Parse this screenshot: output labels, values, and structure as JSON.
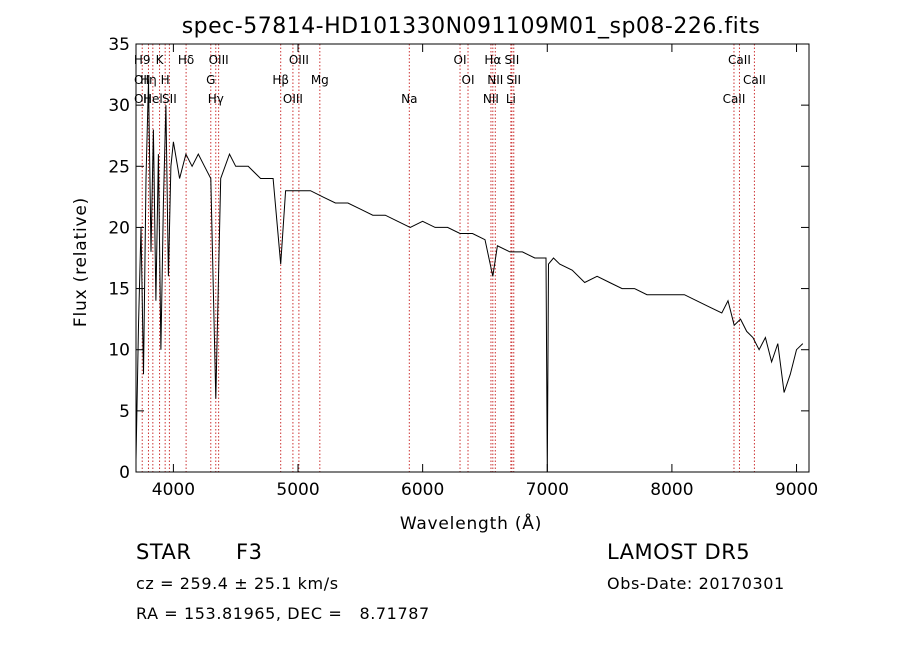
{
  "chart_data": {
    "type": "line",
    "title": "spec-57814-HD101330N091109M01_sp08-226.fits",
    "xlabel": "Wavelength (Å)",
    "ylabel": "Flux (relative)",
    "xlim": [
      3700,
      9100
    ],
    "ylim": [
      0,
      35
    ],
    "xticks": [
      4000,
      5000,
      6000,
      7000,
      8000,
      9000
    ],
    "yticks": [
      0,
      5,
      10,
      15,
      20,
      25,
      30,
      35
    ],
    "grid": false,
    "line_color": "#000000",
    "marker_color": "#cc3333",
    "series": [
      {
        "x": [
          3700,
          3720,
          3740,
          3760,
          3780,
          3800,
          3820,
          3840,
          3860,
          3880,
          3900,
          3920,
          3940,
          3960,
          3980,
          4000,
          4050,
          4100,
          4150,
          4200,
          4250,
          4300,
          4340,
          4380,
          4450,
          4500,
          4600,
          4700,
          4800,
          4861,
          4900,
          5000,
          5100,
          5200,
          5300,
          5400,
          5500,
          5600,
          5700,
          5800,
          5900,
          6000,
          6100,
          6200,
          6300,
          6400,
          6500,
          6563,
          6600,
          6700,
          6800,
          6900,
          6950,
          6990,
          7000,
          7010,
          7050,
          7100,
          7200,
          7300,
          7400,
          7500,
          7600,
          7700,
          7800,
          7900,
          8000,
          8100,
          8200,
          8300,
          8400,
          8450,
          8500,
          8550,
          8600,
          8650,
          8700,
          8750,
          8800,
          8850,
          8900,
          8950,
          9000,
          9050
        ],
        "values": [
          1,
          12,
          20,
          8,
          24,
          32,
          18,
          28,
          14,
          26,
          10,
          22,
          30,
          16,
          25,
          27,
          24,
          26,
          25,
          26,
          25,
          24,
          6,
          24,
          26,
          25,
          25,
          24,
          24,
          17,
          23,
          23,
          23,
          22.5,
          22,
          22,
          21.5,
          21,
          21,
          20.5,
          20,
          20.5,
          20,
          20,
          19.5,
          19.5,
          19,
          16,
          18.5,
          18,
          18,
          17.5,
          17.5,
          17.5,
          0,
          17,
          17.5,
          17,
          16.5,
          15.5,
          16,
          15.5,
          15,
          15,
          14.5,
          14.5,
          14.5,
          14.5,
          14,
          13.5,
          13,
          14,
          12,
          12.5,
          11.5,
          11,
          10,
          11,
          9,
          10.5,
          6.5,
          8,
          10,
          10.5
        ]
      }
    ],
    "lines": [
      {
        "x": 3750,
        "labels": [
          "H9",
          "OII",
          "OII"
        ]
      },
      {
        "x": 3800,
        "labels": [
          "Hη"
        ]
      },
      {
        "x": 3835,
        "labels": [
          "Hel"
        ]
      },
      {
        "x": 3889,
        "labels": [
          "K"
        ]
      },
      {
        "x": 3934,
        "labels": [
          "H"
        ]
      },
      {
        "x": 3968,
        "labels": [
          "SII"
        ]
      },
      {
        "x": 4102,
        "labels": [
          "Hδ"
        ]
      },
      {
        "x": 4300,
        "labels": [
          "G"
        ]
      },
      {
        "x": 4340,
        "labels": [
          "Hγ"
        ]
      },
      {
        "x": 4363,
        "labels": [
          "OIII"
        ]
      },
      {
        "x": 4861,
        "labels": [
          "Hβ"
        ]
      },
      {
        "x": 4959,
        "labels": [
          "OIII"
        ]
      },
      {
        "x": 5007,
        "labels": [
          "OIII"
        ]
      },
      {
        "x": 5175,
        "labels": [
          "Mg"
        ]
      },
      {
        "x": 5893,
        "labels": [
          "Na"
        ]
      },
      {
        "x": 6300,
        "labels": [
          "OI"
        ]
      },
      {
        "x": 6364,
        "labels": [
          "OI"
        ]
      },
      {
        "x": 6548,
        "labels": [
          "NII"
        ]
      },
      {
        "x": 6563,
        "labels": [
          "Hα"
        ]
      },
      {
        "x": 6583,
        "labels": [
          "NII"
        ]
      },
      {
        "x": 6708,
        "labels": [
          "Li"
        ]
      },
      {
        "x": 6716,
        "labels": [
          "SII"
        ]
      },
      {
        "x": 6731,
        "labels": [
          "SII"
        ]
      },
      {
        "x": 8498,
        "labels": [
          "CaII"
        ]
      },
      {
        "x": 8542,
        "labels": [
          "CaII"
        ]
      },
      {
        "x": 8662,
        "labels": [
          "CaII"
        ]
      }
    ]
  },
  "info": {
    "class": "STAR",
    "subclass": "F3",
    "survey": "LAMOST DR5",
    "cz": "cz = 259.4 ± 25.1 km/s",
    "obs_date": "Obs-Date: 20170301",
    "radec": "RA = 153.81965, DEC =   8.71787"
  }
}
